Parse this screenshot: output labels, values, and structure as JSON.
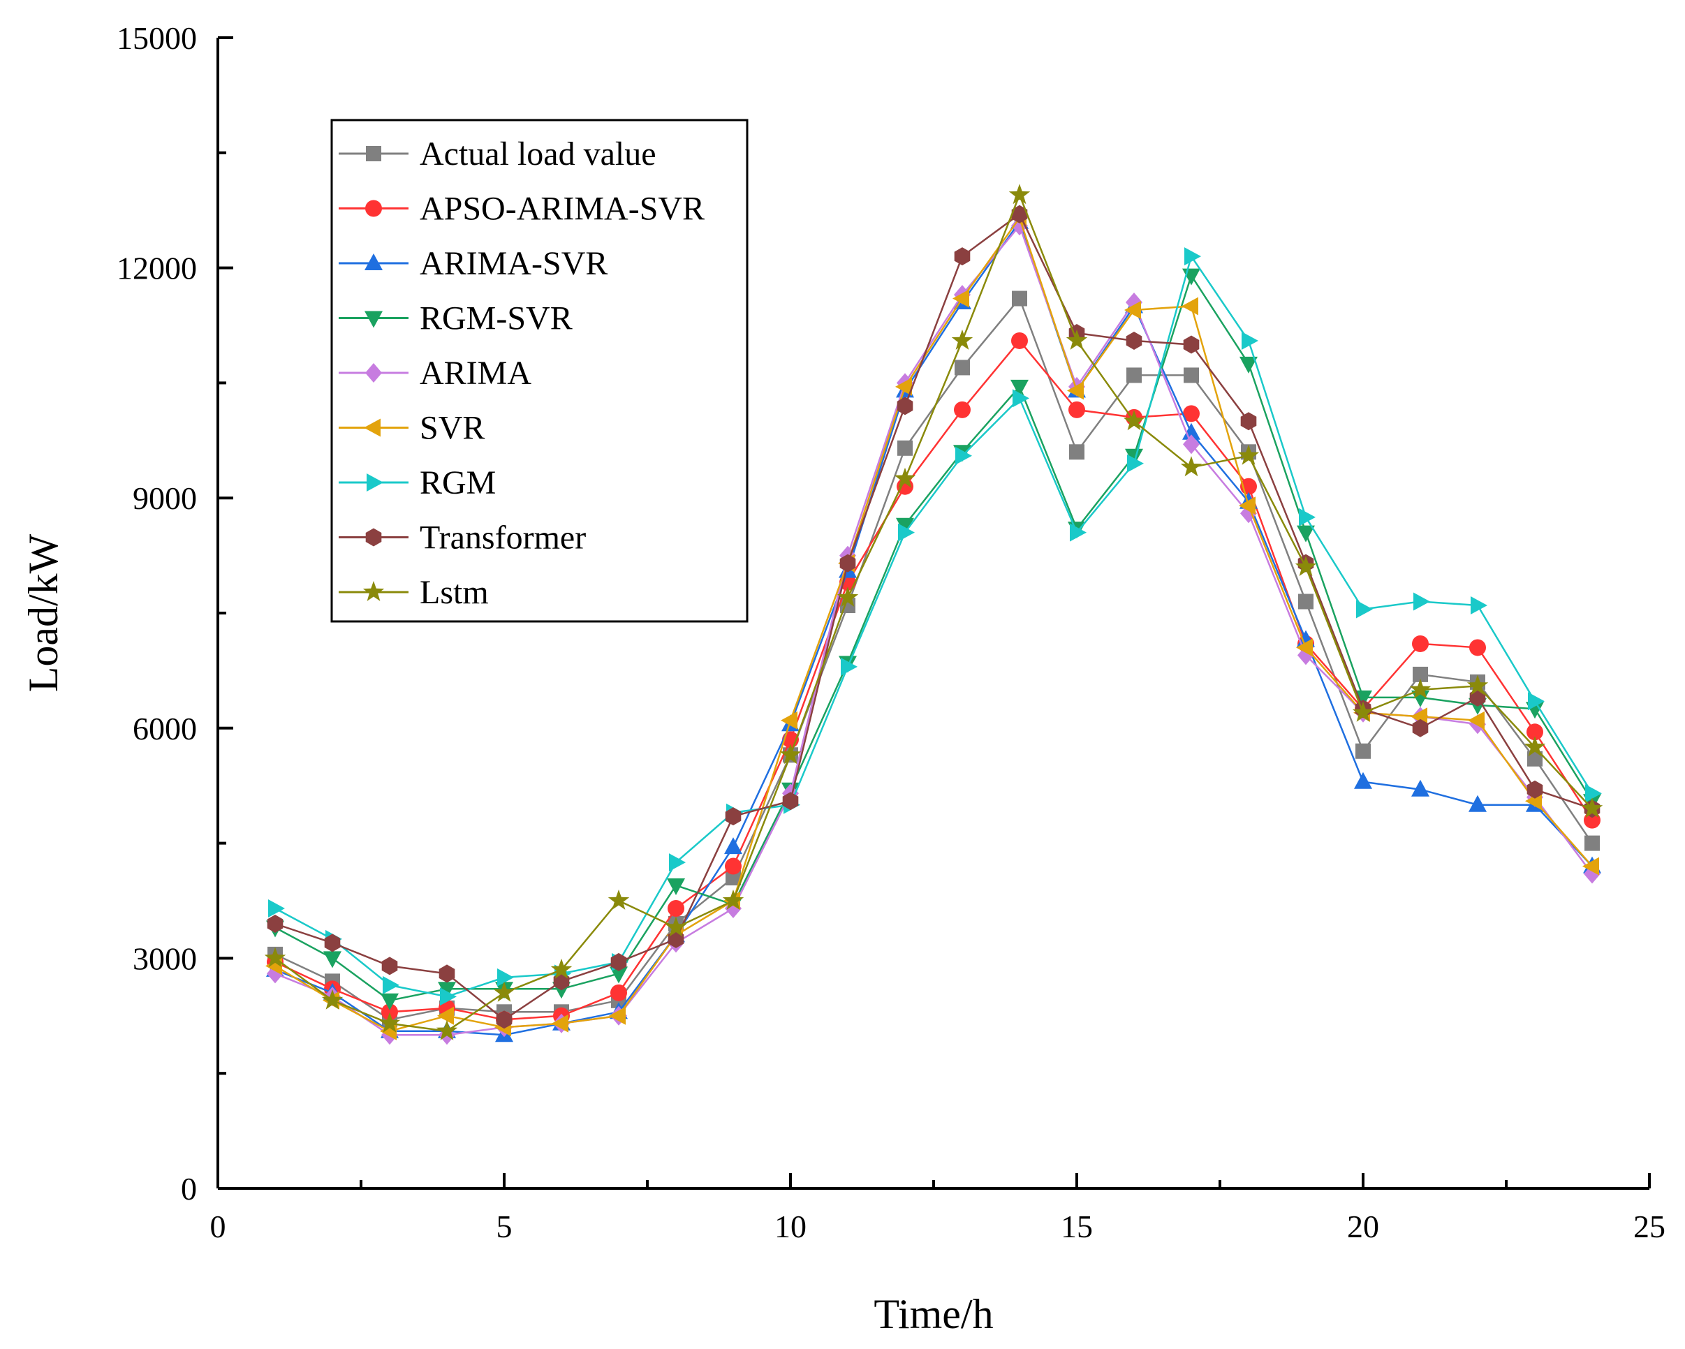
{
  "chart_data": {
    "type": "line",
    "title": "",
    "xlabel": "Time/h",
    "ylabel": "Load/kW",
    "xlim": [
      0,
      25
    ],
    "ylim": [
      0,
      15000
    ],
    "xticks": [
      0,
      5,
      10,
      15,
      20,
      25
    ],
    "yticks": [
      0,
      3000,
      6000,
      9000,
      12000,
      15000
    ],
    "xtick_labels": [
      "0",
      "5",
      "10",
      "15",
      "20",
      "25"
    ],
    "ytick_labels": [
      "0",
      "3000",
      "6000",
      "9000",
      "12000",
      "15000"
    ],
    "grid": false,
    "legend_position": "top-left",
    "x": [
      1,
      2,
      3,
      4,
      5,
      6,
      7,
      8,
      9,
      10,
      11,
      12,
      13,
      14,
      15,
      16,
      17,
      18,
      19,
      20,
      21,
      22,
      23,
      24
    ],
    "series": [
      {
        "name": "Actual load value",
        "color": "#808080",
        "marker": "square",
        "values": [
          3050,
          2700,
          2200,
          2350,
          2300,
          2300,
          2450,
          3450,
          4050,
          5650,
          7600,
          9650,
          10700,
          11600,
          9600,
          10600,
          10600,
          9600,
          7650,
          5700,
          6700,
          6600,
          5600,
          4500
        ]
      },
      {
        "name": "APSO-ARIMA-SVR",
        "color": "#ff3333",
        "marker": "circle",
        "values": [
          2950,
          2600,
          2300,
          2350,
          2200,
          2250,
          2550,
          3650,
          4200,
          5850,
          7900,
          9150,
          10150,
          11050,
          10150,
          10050,
          10100,
          9150,
          7100,
          6250,
          7100,
          7050,
          5950,
          4800
        ]
      },
      {
        "name": "ARIMA-SVR",
        "color": "#1f6fe0",
        "marker": "triangle-up",
        "values": [
          2850,
          2550,
          2050,
          2050,
          2000,
          2150,
          2300,
          3300,
          4450,
          6050,
          8050,
          10400,
          11550,
          12600,
          10400,
          11500,
          9850,
          8950,
          7150,
          5300,
          5200,
          5000,
          5000,
          4200
        ]
      },
      {
        "name": "RGM-SVR",
        "color": "#1aa260",
        "marker": "triangle-down",
        "values": [
          3400,
          3000,
          2450,
          2600,
          2600,
          2600,
          2800,
          3950,
          3700,
          5200,
          6850,
          8650,
          9600,
          10450,
          8600,
          9550,
          11900,
          10750,
          8550,
          6400,
          6400,
          6300,
          6250,
          5050
        ]
      },
      {
        "name": "ARIMA",
        "color": "#c77ce0",
        "marker": "diamond",
        "values": [
          2800,
          2500,
          2000,
          2000,
          2100,
          2150,
          2250,
          3200,
          3650,
          5150,
          8250,
          10500,
          11650,
          12550,
          10450,
          11550,
          9700,
          8800,
          6950,
          6200,
          6150,
          6050,
          5100,
          4100
        ]
      },
      {
        "name": "SVR",
        "color": "#e3a30c",
        "marker": "triangle-left",
        "values": [
          2900,
          2450,
          2050,
          2250,
          2100,
          2150,
          2250,
          3300,
          3750,
          6100,
          8150,
          10450,
          11600,
          12650,
          10400,
          11450,
          11500,
          8900,
          7050,
          6200,
          6150,
          6100,
          5050,
          4200
        ]
      },
      {
        "name": "RGM",
        "color": "#1ac9c9",
        "marker": "triangle-right",
        "values": [
          3650,
          3250,
          2650,
          2500,
          2750,
          2800,
          2950,
          4250,
          4900,
          5000,
          6800,
          8550,
          9550,
          10300,
          8550,
          9450,
          12150,
          11050,
          8750,
          7550,
          7650,
          7600,
          6350,
          5150
        ]
      },
      {
        "name": "Transformer",
        "color": "#8b4040",
        "marker": "hexagon",
        "values": [
          3450,
          3200,
          2900,
          2800,
          2200,
          2700,
          2950,
          3250,
          4850,
          5050,
          8150,
          10200,
          12150,
          12700,
          11150,
          11050,
          11000,
          10000,
          8150,
          6250,
          6000,
          6400,
          5200,
          4950
        ]
      },
      {
        "name": "Lstm",
        "color": "#8a8a0a",
        "marker": "star",
        "values": [
          3000,
          2450,
          2150,
          2050,
          2550,
          2850,
          3750,
          3400,
          3750,
          5650,
          7700,
          9250,
          11050,
          12950,
          11050,
          10000,
          9400,
          9550,
          8100,
          6200,
          6500,
          6550,
          5750,
          4950
        ]
      }
    ]
  }
}
